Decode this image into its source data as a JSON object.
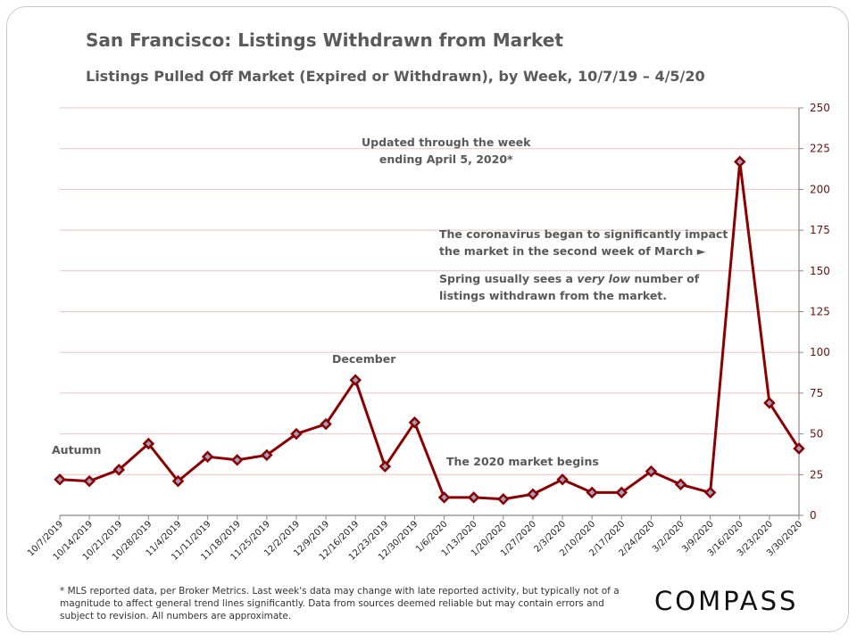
{
  "chart_data": {
    "type": "line",
    "title": "San Francisco: Listings Withdrawn from Market",
    "subtitle": "Listings Pulled Off Market (Expired or Withdrawn), by Week, 10/7/19 – 4/5/20",
    "xlabel": "",
    "ylabel": "",
    "ylim": [
      0,
      250
    ],
    "yticks": [
      0,
      25,
      50,
      75,
      100,
      125,
      150,
      175,
      200,
      225,
      250
    ],
    "y_axis_side": "right",
    "grid": true,
    "categories": [
      "10/7/2019",
      "10/14/2019",
      "10/21/2019",
      "10/28/2019",
      "11/4/2019",
      "11/11/2019",
      "11/18/2019",
      "11/25/2019",
      "12/2/2019",
      "12/9/2019",
      "12/16/2019",
      "12/23/2019",
      "12/30/2019",
      "1/6/2020",
      "1/13/2020",
      "1/20/2020",
      "1/27/2020",
      "2/3/2020",
      "2/10/2020",
      "2/17/2020",
      "2/24/2020",
      "3/2/2020",
      "3/9/2020",
      "3/16/2020",
      "3/23/2020",
      "3/30/2020"
    ],
    "values": [
      22,
      21,
      28,
      44,
      21,
      36,
      34,
      37,
      50,
      56,
      83,
      30,
      57,
      11,
      11,
      10,
      13,
      22,
      14,
      14,
      27,
      19,
      14,
      217,
      69,
      41
    ],
    "colors": {
      "line": "#8b0000",
      "grid": "#f0c0c0",
      "axis": "#888888"
    }
  },
  "annotations": {
    "updated": "Updated through the week\nending April 5, 2020*",
    "coronavirus": "The coronavirus began to significantly impact\nthe market in the second week of March ►",
    "spring_pre": "Spring usually sees a ",
    "spring_em": "very low",
    "spring_post": " number of\nlistings withdrawn from the market.",
    "december": "December",
    "autumn": "Autumn",
    "market2020": "The 2020 market begins"
  },
  "footnote": "* MLS reported data, per Broker Metrics. Last week's data may change with late reported activity, but typically not of a magnitude to affect general trend lines significantly. Data from sources deemed reliable but may contain errors and subject to revision. All numbers are approximate.",
  "logo": "COMPASS"
}
